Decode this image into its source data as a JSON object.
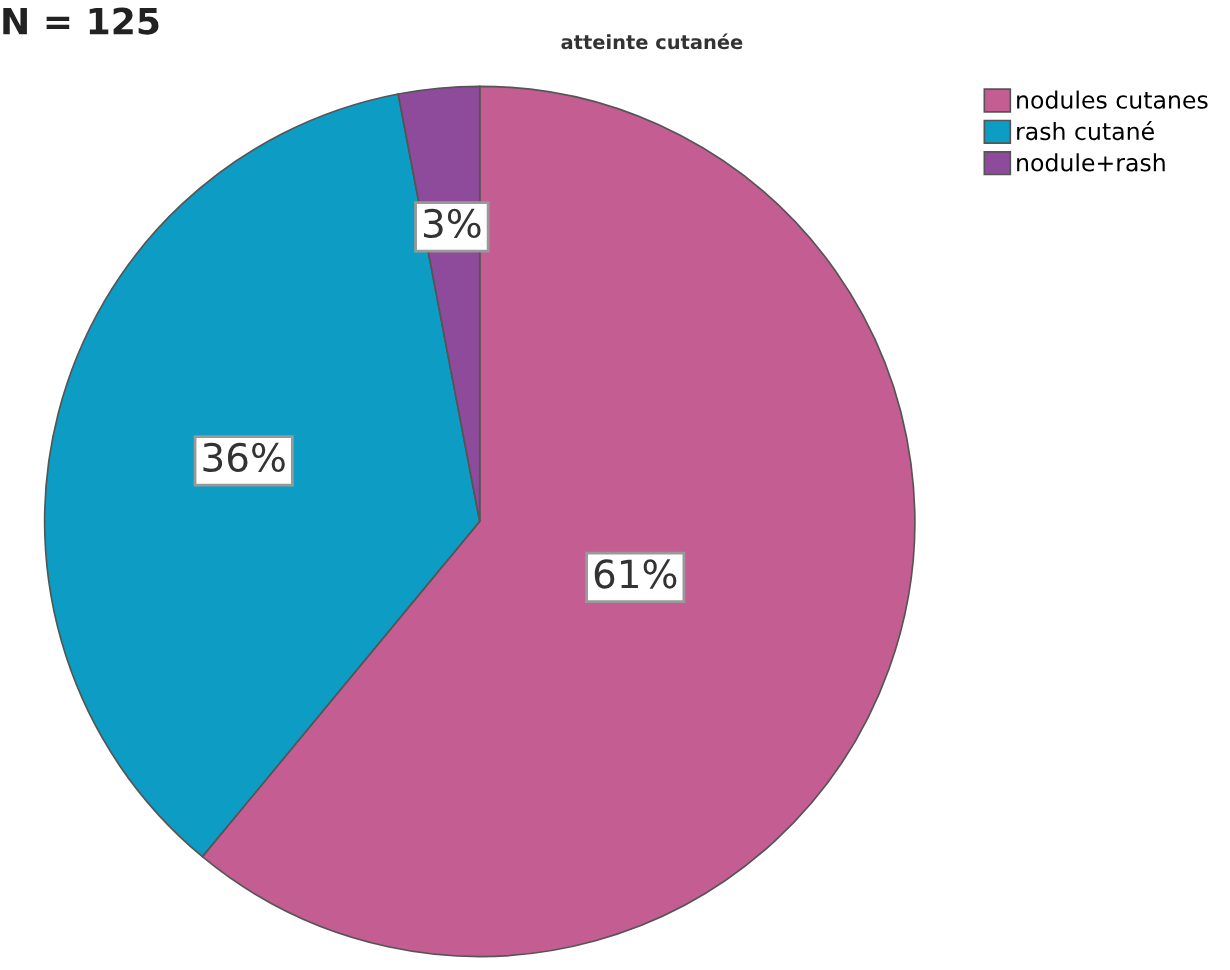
{
  "chart_data": {
    "type": "pie",
    "title": "atteinte cutanée",
    "annotations": [
      "N = 125"
    ],
    "categories": [
      "nodules cutanes",
      "rash cutané",
      "nodule+rash"
    ],
    "values": [
      61,
      36,
      3
    ],
    "colors": [
      "#c45e92",
      "#0d9cc4",
      "#8e4a9b"
    ],
    "value_labels": [
      "61%",
      "36%",
      "3%"
    ],
    "legend": "top right"
  }
}
